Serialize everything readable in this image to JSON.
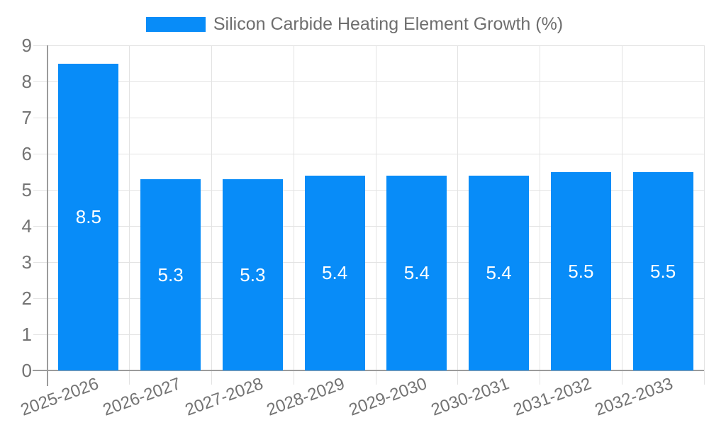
{
  "chart_data": {
    "type": "bar",
    "title": "Silicon Carbide Heating Element Growth (%)",
    "legend_position": "top",
    "categories": [
      "2025-2026",
      "2026-2027",
      "2027-2028",
      "2028-2029",
      "2029-2030",
      "2030-2031",
      "2031-2032",
      "2032-2033"
    ],
    "values": [
      8.5,
      5.3,
      5.3,
      5.4,
      5.4,
      5.4,
      5.5,
      5.5
    ],
    "bar_value_labels": [
      "8.5",
      "5.3",
      "5.3",
      "5.4",
      "5.4",
      "5.4",
      "5.5",
      "5.5"
    ],
    "xlabel": "",
    "ylabel": "",
    "ylim": [
      0,
      9
    ],
    "y_ticks": [
      0,
      1,
      2,
      3,
      4,
      5,
      6,
      7,
      8,
      9
    ],
    "grid": true,
    "colors": {
      "bar": "#088cf8",
      "bar_value_text": "#ffffff",
      "grid": "#e3e3e3",
      "axis": "#9b9b9b",
      "tick_label": "#737373",
      "legend_text": "#6e6e6e",
      "background": "#ffffff"
    }
  }
}
